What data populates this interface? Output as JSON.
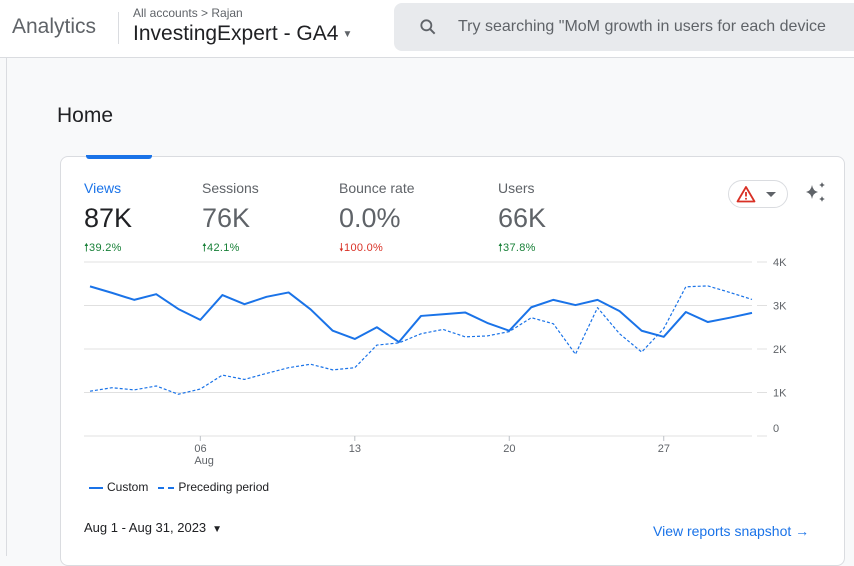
{
  "header": {
    "brand": "Analytics",
    "breadcrumb": "All accounts > Rajan",
    "property": "InvestingExpert - GA4",
    "search_placeholder": "Try searching \"MoM growth in users for each device"
  },
  "page": {
    "title": "Home"
  },
  "metrics": [
    {
      "label": "Views",
      "value": "87K",
      "change": "39.2%",
      "direction": "up"
    },
    {
      "label": "Sessions",
      "value": "76K",
      "change": "42.1%",
      "direction": "up"
    },
    {
      "label": "Bounce rate",
      "value": "0.0%",
      "change": "100.0%",
      "direction": "down"
    },
    {
      "label": "Users",
      "value": "66K",
      "change": "37.8%",
      "direction": "up"
    }
  ],
  "colors": {
    "accent": "#1a73e8",
    "up": "#188038",
    "down": "#d93025"
  },
  "icons": {
    "search": "search-icon",
    "alert": "warning-triangle-icon",
    "insights": "sparkle-icon"
  },
  "chart_data": {
    "type": "line",
    "x": [
      1,
      2,
      3,
      4,
      5,
      6,
      7,
      8,
      9,
      10,
      11,
      12,
      13,
      14,
      15,
      16,
      17,
      18,
      19,
      20,
      21,
      22,
      23,
      24,
      25,
      26,
      27,
      28,
      29,
      30,
      31
    ],
    "x_ticks": [
      {
        "day": 6,
        "label": "06",
        "sublabel": "Aug"
      },
      {
        "day": 13,
        "label": "13"
      },
      {
        "day": 20,
        "label": "20"
      },
      {
        "day": 27,
        "label": "27"
      }
    ],
    "y_ticks": [
      "0",
      "1K",
      "2K",
      "3K",
      "4K"
    ],
    "ylim": [
      0,
      4000
    ],
    "y_axis_side": "right",
    "grid": true,
    "legend_position": "bottom-left",
    "series": [
      {
        "name": "Custom",
        "style": "solid",
        "values": [
          3440,
          3290,
          3130,
          3260,
          2920,
          2670,
          3240,
          3030,
          3200,
          3300,
          2910,
          2420,
          2230,
          2500,
          2160,
          2760,
          2800,
          2840,
          2600,
          2420,
          2960,
          3130,
          3010,
          3130,
          2870,
          2420,
          2280,
          2850,
          2620,
          2720,
          2830
        ]
      },
      {
        "name": "Preceding period",
        "style": "dashed",
        "values": [
          1030,
          1110,
          1060,
          1150,
          960,
          1080,
          1400,
          1300,
          1440,
          1570,
          1650,
          1520,
          1570,
          2090,
          2140,
          2350,
          2450,
          2280,
          2300,
          2400,
          2720,
          2580,
          1880,
          2950,
          2350,
          1930,
          2470,
          3430,
          3450,
          3300,
          3140
        ]
      }
    ]
  },
  "footer": {
    "date_range": "Aug 1 - Aug 31, 2023",
    "snapshot_link": "View reports snapshot",
    "arrow": "→"
  }
}
